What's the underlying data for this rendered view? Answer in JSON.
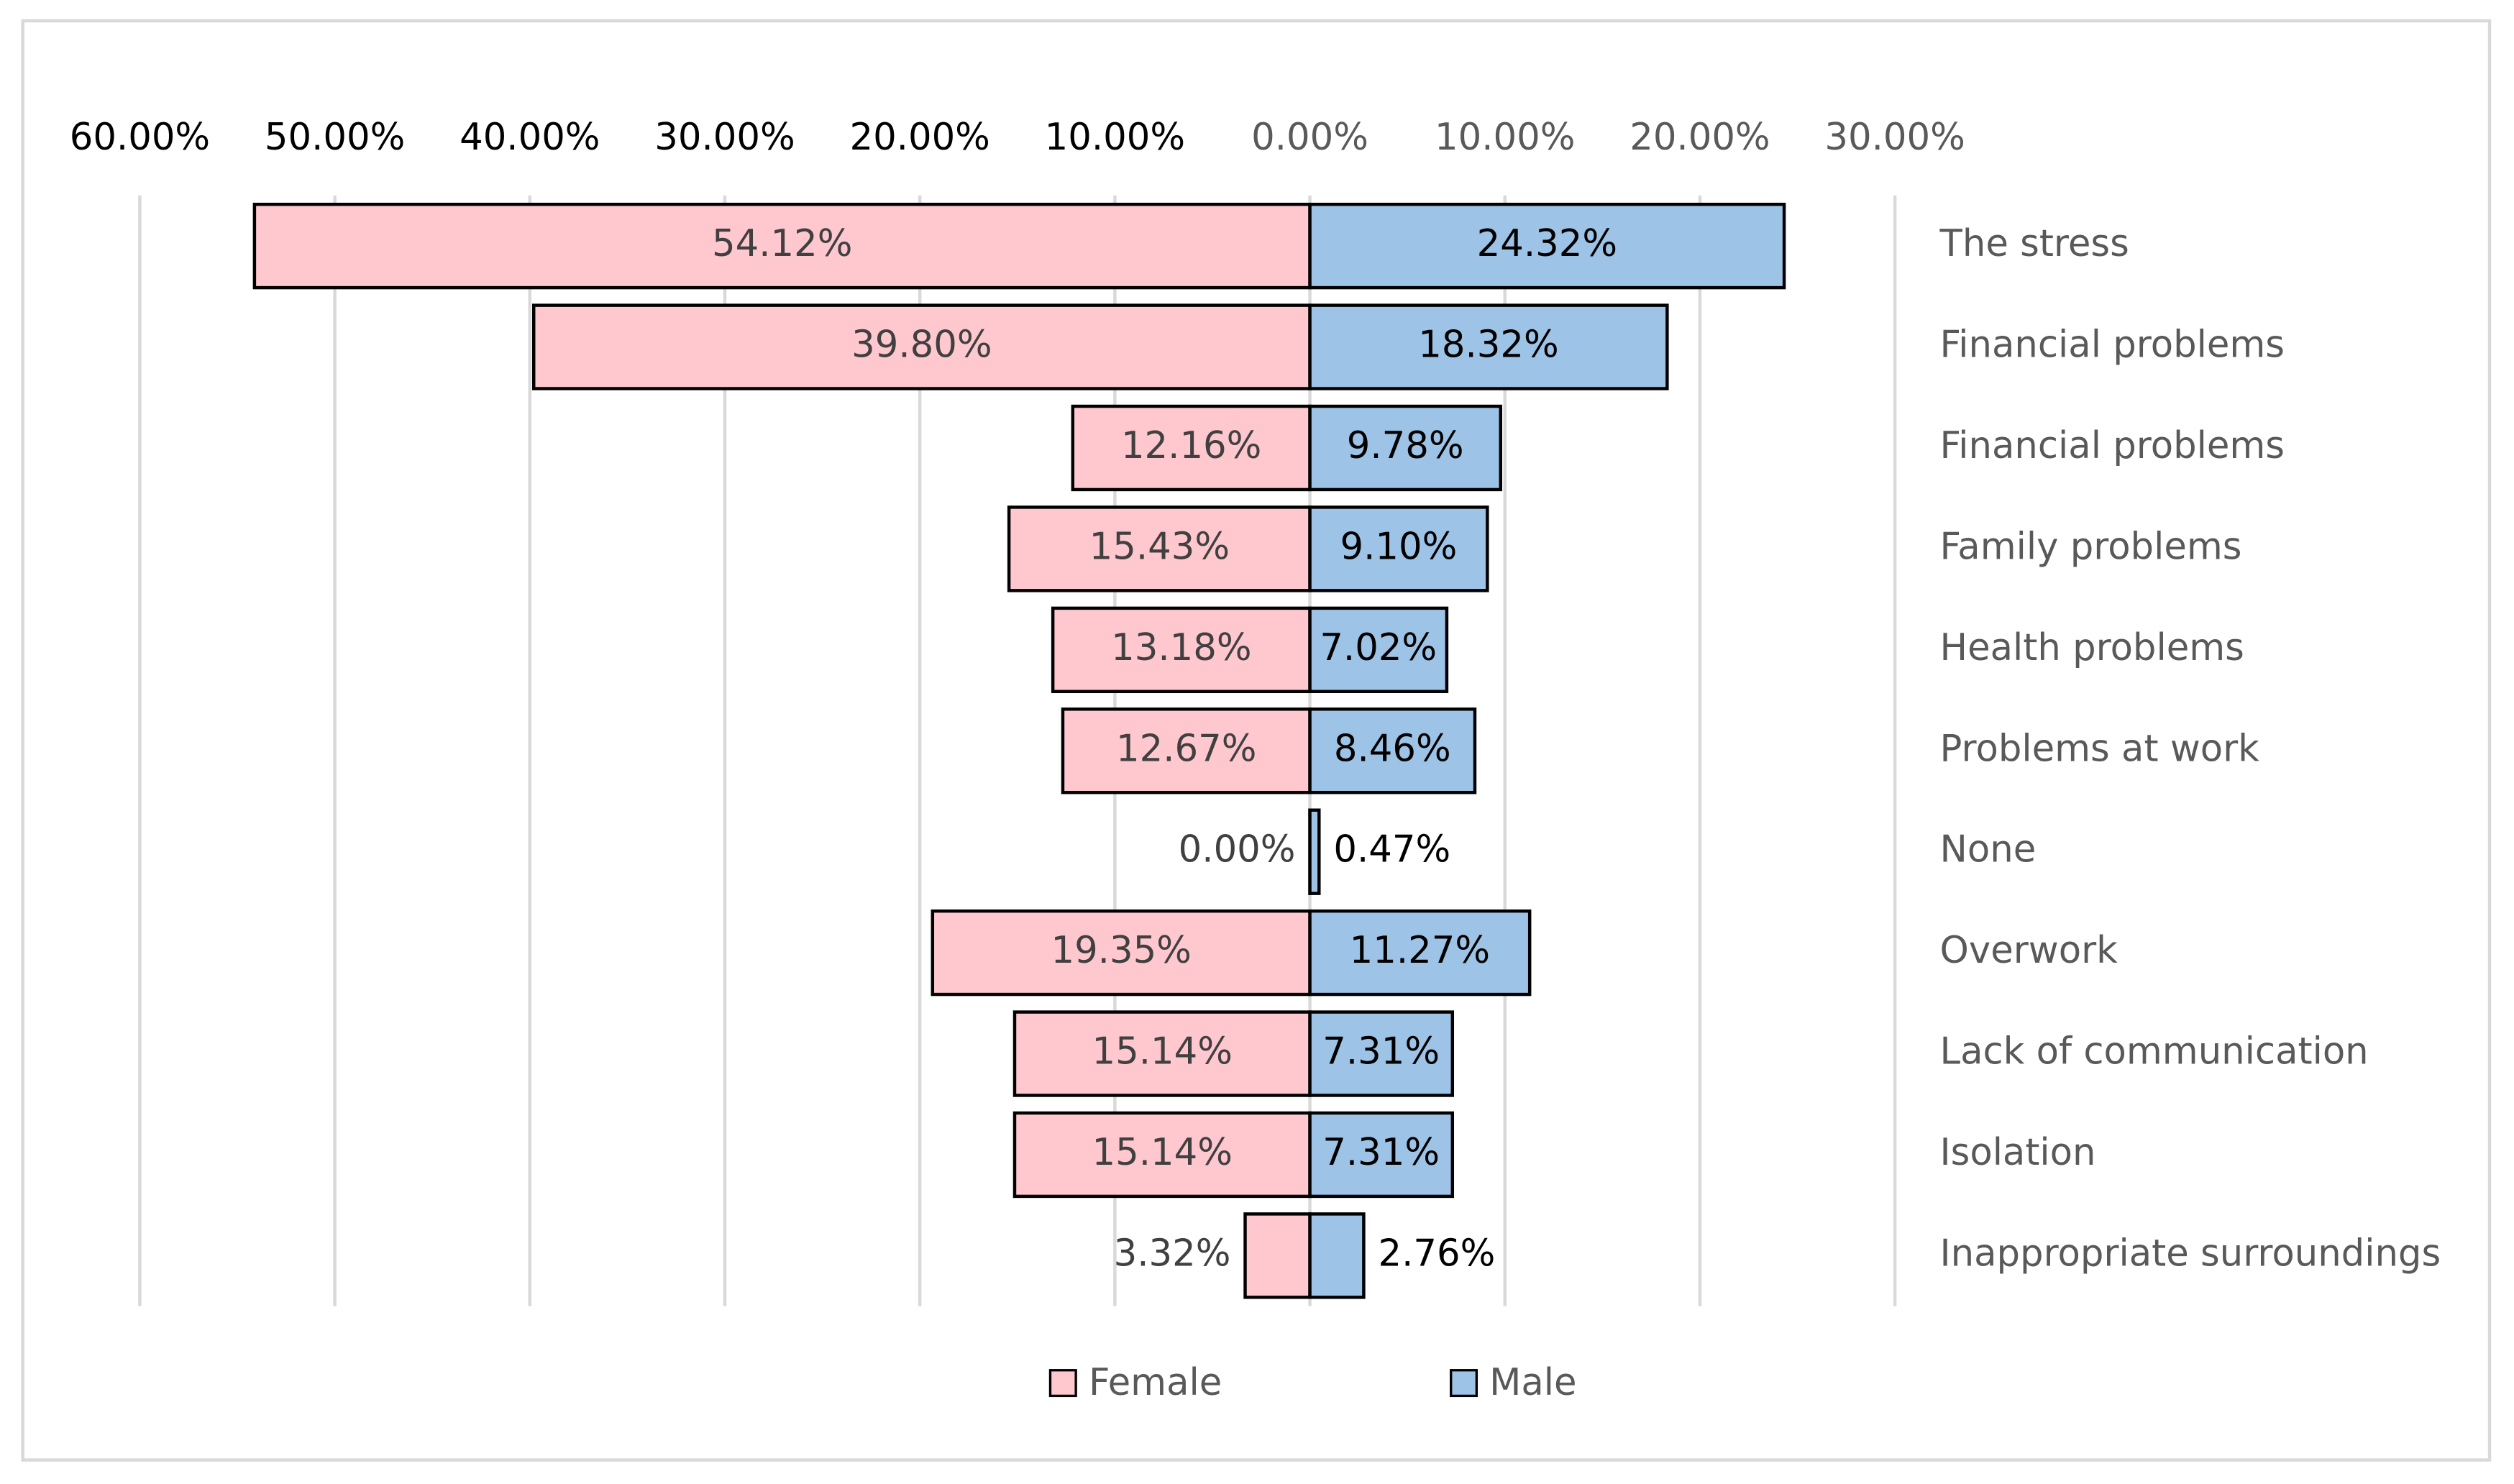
{
  "chart_data": {
    "type": "butterfly-bar",
    "categories": [
      "The stress",
      "Financial problems",
      "Financial problems",
      "Family problems",
      "Health problems",
      "Problems at work",
      "None",
      "Overwork",
      "Lack of communication",
      "Isolation",
      "Inappropriate surroundings"
    ],
    "series": [
      {
        "name": "Female",
        "color": "#ffc7ce",
        "side": "left",
        "values": [
          54.12,
          39.8,
          12.16,
          15.43,
          13.18,
          12.67,
          0.0,
          19.35,
          15.14,
          15.14,
          3.32
        ],
        "value_labels": [
          "54.12%",
          "39.80%",
          "12.16%",
          "15.43%",
          "13.18%",
          "12.67%",
          "0.00%",
          "19.35%",
          "15.14%",
          "15.14%",
          "3.32%"
        ]
      },
      {
        "name": "Male",
        "color": "#9dc3e6",
        "side": "right",
        "values": [
          24.32,
          18.32,
          9.78,
          9.1,
          7.02,
          8.46,
          0.47,
          11.27,
          7.31,
          7.31,
          2.76
        ],
        "value_labels": [
          "24.32%",
          "18.32%",
          "9.78%",
          "9.10%",
          "7.02%",
          "8.46%",
          "0.47%",
          "11.27%",
          "7.31%",
          "7.31%",
          "2.76%"
        ]
      }
    ],
    "xlim": [
      -60,
      30
    ],
    "xticks": [
      {
        "value": -60,
        "label": "60.00%"
      },
      {
        "value": -50,
        "label": "50.00%"
      },
      {
        "value": -40,
        "label": "40.00%"
      },
      {
        "value": -30,
        "label": "30.00%"
      },
      {
        "value": -20,
        "label": "20.00%"
      },
      {
        "value": -10,
        "label": "10.00%"
      },
      {
        "value": 0,
        "label": "0.00%"
      },
      {
        "value": 10,
        "label": "10.00%"
      },
      {
        "value": 20,
        "label": "20.00%"
      },
      {
        "value": 30,
        "label": "30.00%"
      }
    ],
    "grid": true,
    "legend": "bottom"
  }
}
